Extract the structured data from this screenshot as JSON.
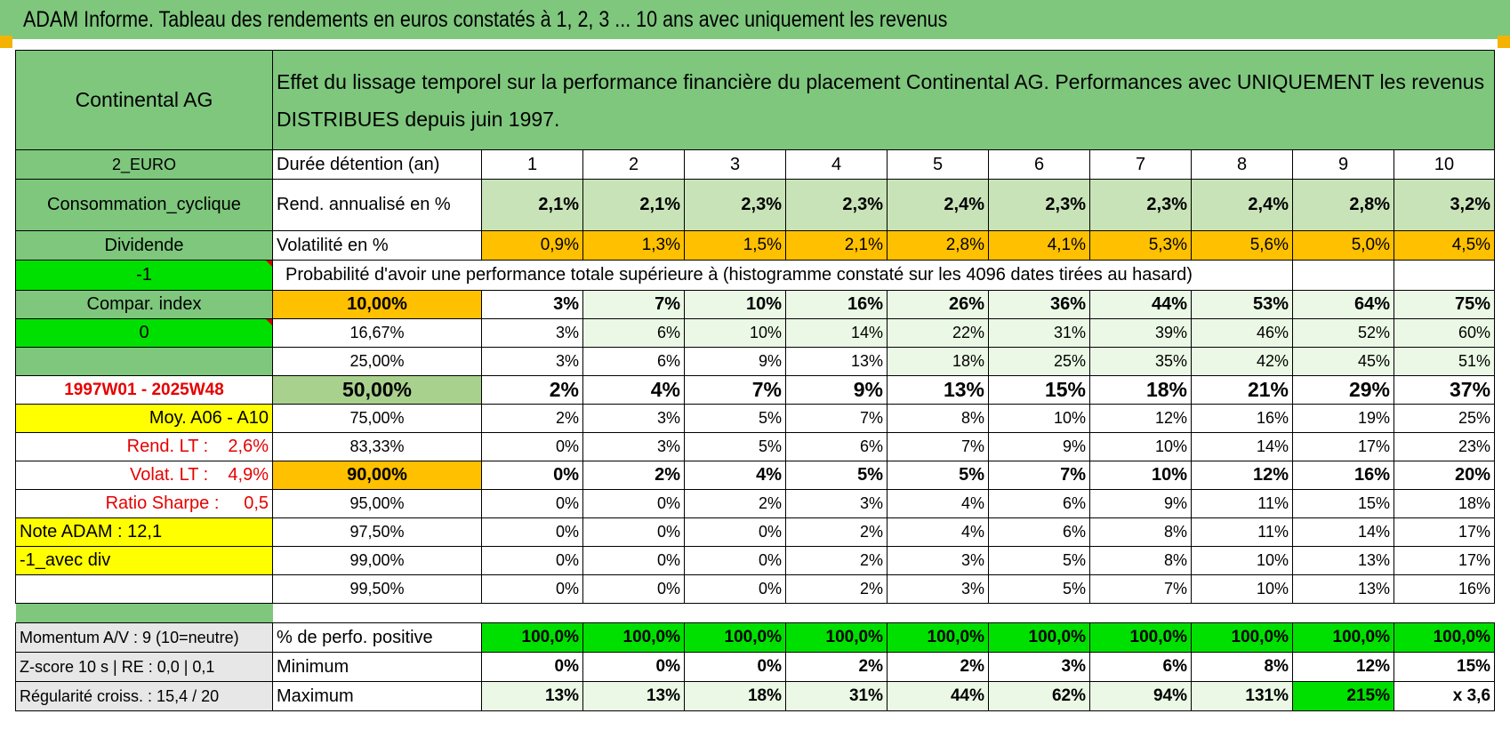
{
  "title": "ADAM Informe. Tableau des rendements en euros constatés à 1, 2, 3 ... 10 ans avec uniquement les revenus",
  "sidebar": {
    "company": "Continental AG",
    "currency": "2_EURO",
    "sector": "Consommation_cyclique",
    "mode": "Dividende",
    "value_a": "-1",
    "compar": "Compar. index",
    "value_b": "0",
    "period": "1997W01 - 2025W48",
    "moy": "Moy. A06 - A10",
    "rend_lt": "Rend. LT :    2,6%",
    "volat_lt": "Volat. LT :    4,9%",
    "sharpe": "Ratio Sharpe :     0,5",
    "note": "Note ADAM : 12,1",
    "avec_div": "-1_avec div",
    "momentum": "Momentum A/V : 9 (10=neutre)",
    "zscore": "Z-score 10 s | RE : 0,0 | 0,1",
    "regularite": "Régularité croiss. : 15,4 / 20"
  },
  "header": {
    "description": "Effet du lissage temporel sur la performance financière du placement Continental AG. Performances avec UNIQUEMENT les revenus DISTRIBUES depuis juin 1997.",
    "duree_label": "Durée détention (an)",
    "years": [
      "1",
      "2",
      "3",
      "4",
      "5",
      "6",
      "7",
      "8",
      "9",
      "10"
    ]
  },
  "rend": {
    "label": "Rend. annualisé en %",
    "values": [
      "2,1%",
      "2,1%",
      "2,3%",
      "2,3%",
      "2,4%",
      "2,3%",
      "2,3%",
      "2,4%",
      "2,8%",
      "3,2%"
    ]
  },
  "vol": {
    "label": "Volatilité en %",
    "values": [
      "0,9%",
      "1,3%",
      "1,5%",
      "2,1%",
      "2,8%",
      "4,1%",
      "5,3%",
      "5,6%",
      "5,0%",
      "4,5%"
    ]
  },
  "proba_label": "Probabilité d'avoir une performance totale supérieure à (histogramme constaté sur les 4096 dates tirées au hasard)",
  "thresholds": [
    {
      "label": "10,00%",
      "values": [
        "3%",
        "7%",
        "10%",
        "16%",
        "26%",
        "36%",
        "44%",
        "53%",
        "64%",
        "75%"
      ]
    },
    {
      "label": "16,67%",
      "values": [
        "3%",
        "6%",
        "10%",
        "14%",
        "22%",
        "31%",
        "39%",
        "46%",
        "52%",
        "60%"
      ]
    },
    {
      "label": "25,00%",
      "values": [
        "3%",
        "6%",
        "9%",
        "13%",
        "18%",
        "25%",
        "35%",
        "42%",
        "45%",
        "51%"
      ]
    },
    {
      "label": "50,00%",
      "values": [
        "2%",
        "4%",
        "7%",
        "9%",
        "13%",
        "15%",
        "18%",
        "21%",
        "29%",
        "37%"
      ]
    },
    {
      "label": "75,00%",
      "values": [
        "2%",
        "3%",
        "5%",
        "7%",
        "8%",
        "10%",
        "12%",
        "16%",
        "19%",
        "25%"
      ]
    },
    {
      "label": "83,33%",
      "values": [
        "0%",
        "3%",
        "5%",
        "6%",
        "7%",
        "9%",
        "10%",
        "14%",
        "17%",
        "23%"
      ]
    },
    {
      "label": "90,00%",
      "values": [
        "0%",
        "2%",
        "4%",
        "5%",
        "5%",
        "7%",
        "10%",
        "12%",
        "16%",
        "20%"
      ]
    },
    {
      "label": "95,00%",
      "values": [
        "0%",
        "0%",
        "2%",
        "3%",
        "4%",
        "6%",
        "9%",
        "11%",
        "15%",
        "18%"
      ]
    },
    {
      "label": "97,50%",
      "values": [
        "0%",
        "0%",
        "0%",
        "2%",
        "4%",
        "6%",
        "8%",
        "11%",
        "14%",
        "17%"
      ]
    },
    {
      "label": "99,00%",
      "values": [
        "0%",
        "0%",
        "0%",
        "2%",
        "3%",
        "5%",
        "8%",
        "10%",
        "13%",
        "17%"
      ]
    },
    {
      "label": "99,50%",
      "values": [
        "0%",
        "0%",
        "0%",
        "2%",
        "3%",
        "5%",
        "7%",
        "10%",
        "13%",
        "16%"
      ]
    }
  ],
  "stats": [
    {
      "label": "% de perfo. positive",
      "values": [
        "100,0%",
        "100,0%",
        "100,0%",
        "100,0%",
        "100,0%",
        "100,0%",
        "100,0%",
        "100,0%",
        "100,0%",
        "100,0%"
      ]
    },
    {
      "label": "Minimum",
      "values": [
        "0%",
        "0%",
        "0%",
        "2%",
        "2%",
        "3%",
        "6%",
        "8%",
        "12%",
        "15%"
      ]
    },
    {
      "label": "Maximum",
      "values": [
        "13%",
        "13%",
        "18%",
        "31%",
        "44%",
        "62%",
        "94%",
        "131%",
        "215%",
        "x 3,6"
      ]
    }
  ],
  "colors": {
    "header_green": "#7ec77d",
    "light_green": "#c8e3b8",
    "bright_green": "#00e000",
    "orange": "#ffc000",
    "yellow": "#ffff00",
    "red_text": "#e60000"
  }
}
